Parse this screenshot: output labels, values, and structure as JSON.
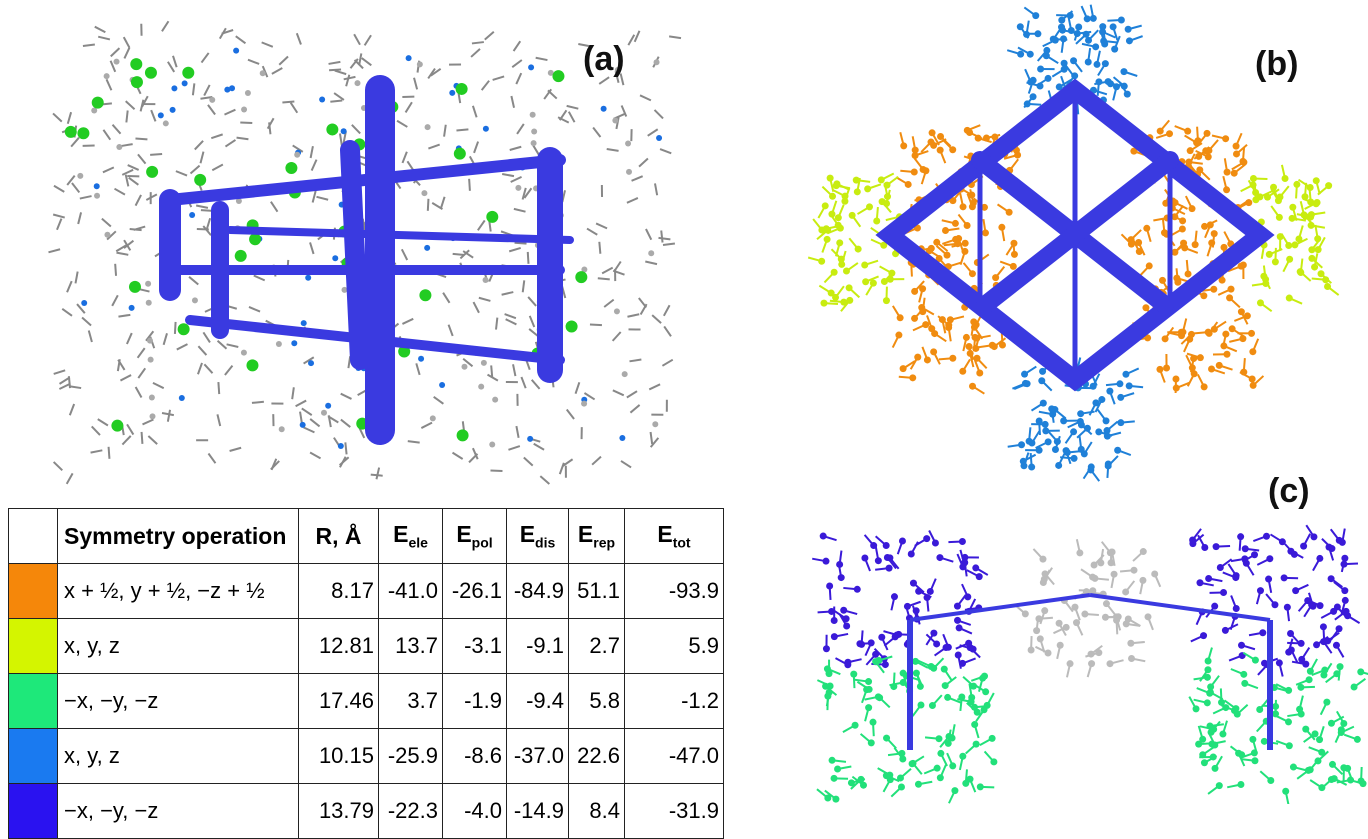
{
  "panels": [
    {
      "label": "(a)"
    },
    {
      "label": "(b)"
    },
    {
      "label": "(c)"
    }
  ],
  "table": {
    "header": [
      "Symmetry operation",
      "R, Å",
      {
        "main": "E",
        "sub": "ele"
      },
      {
        "main": "E",
        "sub": "pol"
      },
      {
        "main": "E",
        "sub": "dis"
      },
      {
        "main": "E",
        "sub": "rep"
      },
      {
        "main": "E",
        "sub": "tot"
      }
    ],
    "rows": [
      {
        "color": "#f5870a",
        "cells": [
          "x + ½, y + ½, −z + ½",
          "8.17",
          "-41.0",
          "-26.1",
          "-84.9",
          "51.1",
          "-93.9"
        ]
      },
      {
        "color": "#d4f500",
        "cells": [
          "x, y, z",
          "12.81",
          "13.7",
          "-3.1",
          "-9.1",
          "2.7",
          "5.9"
        ]
      },
      {
        "color": "#1ee87a",
        "cells": [
          "−x, −y, −z",
          "17.46",
          "3.7",
          "-1.9",
          "-9.4",
          "5.8",
          "-1.2"
        ]
      },
      {
        "color": "#1a7af0",
        "cells": [
          "x, y, z",
          "10.15",
          "-25.9",
          "-8.6",
          "-37.0",
          "22.6",
          "-47.0"
        ]
      },
      {
        "color": "#2a12f0",
        "cells": [
          "−x, −y, −z",
          "13.79",
          "-22.3",
          "-4.0",
          "-14.9",
          "8.4",
          "-31.9"
        ]
      }
    ]
  }
}
